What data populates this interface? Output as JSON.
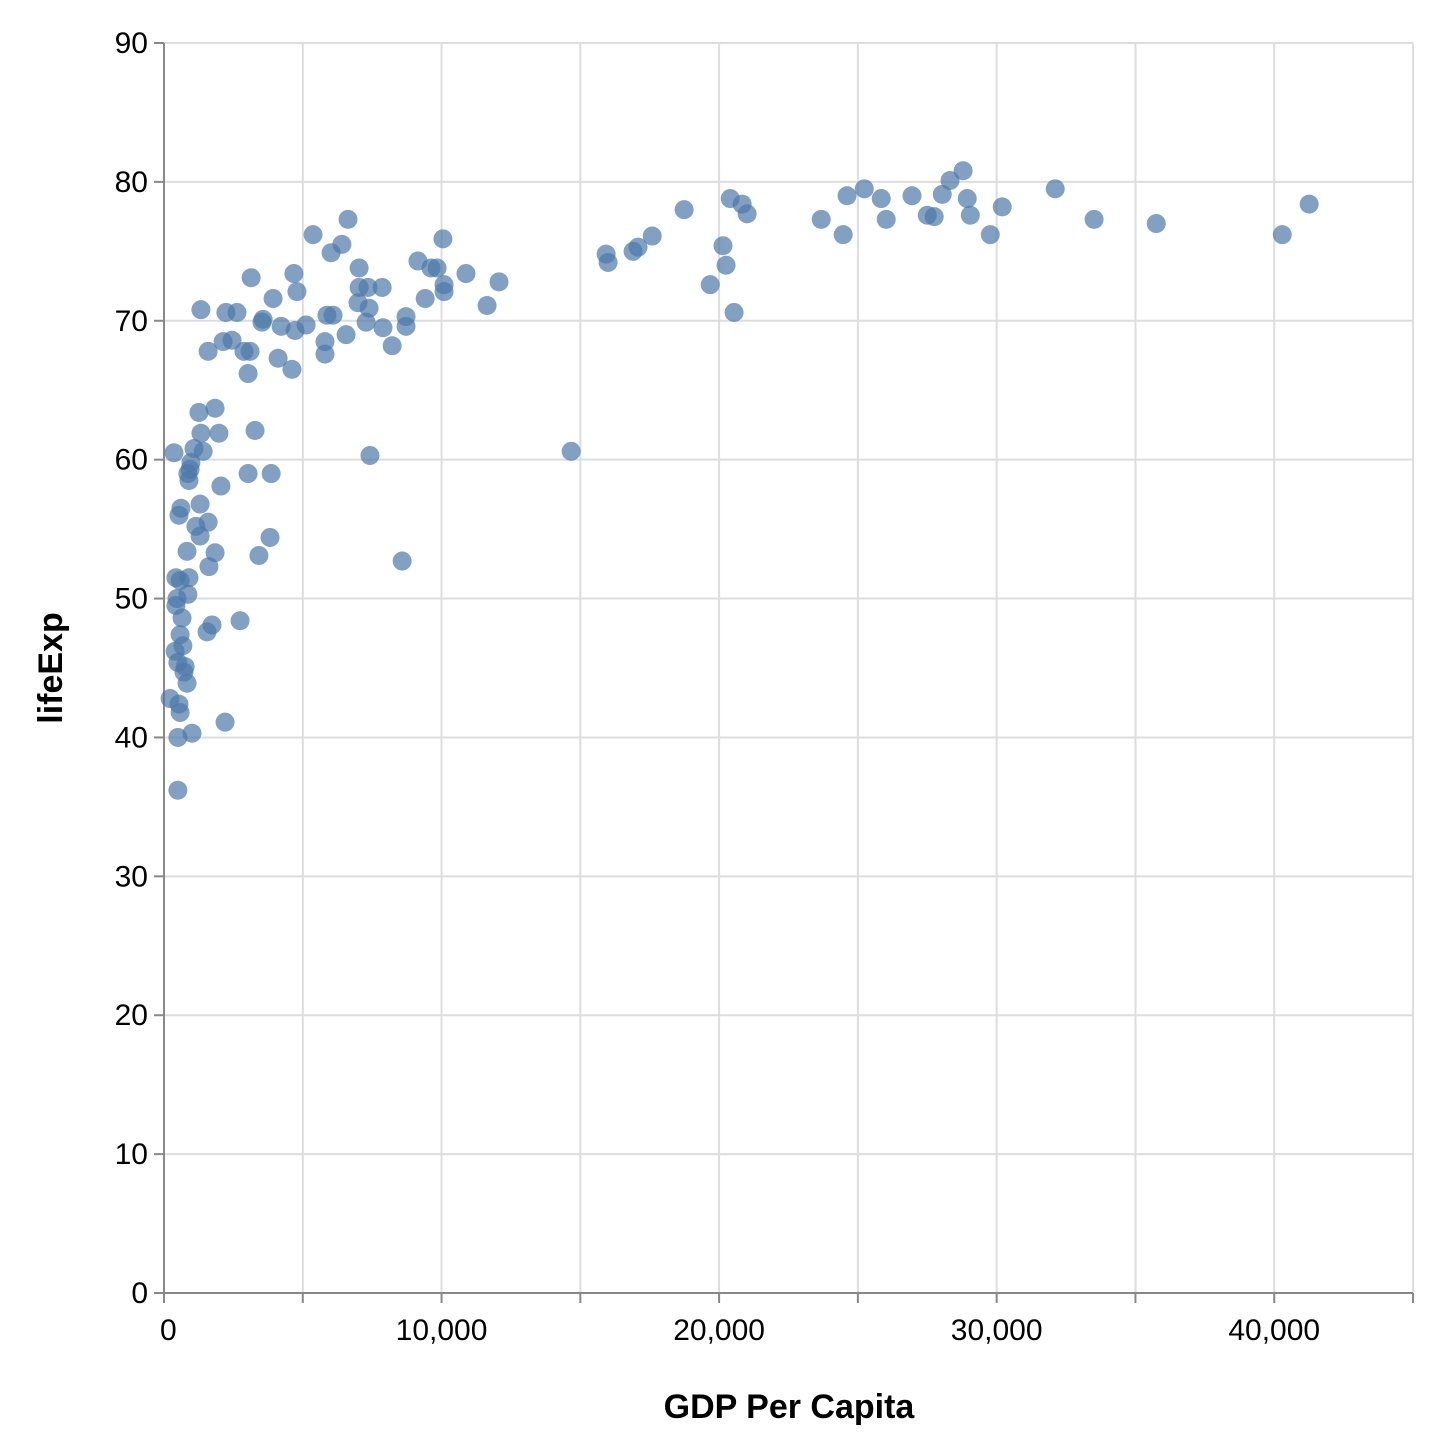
{
  "chart_data": {
    "type": "scatter",
    "xlabel": "GDP Per Capita",
    "ylabel": "lifeExp",
    "xlim": [
      0,
      45000
    ],
    "ylim": [
      0,
      90
    ],
    "x_ticks": [
      0,
      10000,
      20000,
      30000,
      40000
    ],
    "x_tick_labels": [
      "0",
      "10,000",
      "20,000",
      "30,000",
      "40,000"
    ],
    "x_minor_ticks": [
      5000,
      15000,
      25000,
      35000,
      45000
    ],
    "y_ticks": [
      0,
      10,
      20,
      30,
      40,
      50,
      60,
      70,
      80,
      90
    ],
    "y_tick_labels": [
      "0",
      "10",
      "20",
      "30",
      "40",
      "50",
      "60",
      "70",
      "80",
      "90"
    ],
    "grid": true,
    "point_color": "#4c78a8",
    "points": [
      [
        41260,
        78.4
      ],
      [
        40290,
        76.2
      ],
      [
        35750,
        77.0
      ],
      [
        33510,
        77.3
      ],
      [
        32110,
        79.5
      ],
      [
        30200,
        78.2
      ],
      [
        29770,
        76.2
      ],
      [
        29050,
        77.6
      ],
      [
        28940,
        78.8
      ],
      [
        28790,
        80.8
      ],
      [
        28320,
        80.1
      ],
      [
        28040,
        79.1
      ],
      [
        27750,
        77.5
      ],
      [
        27500,
        77.6
      ],
      [
        26950,
        79.0
      ],
      [
        26020,
        77.3
      ],
      [
        25840,
        78.8
      ],
      [
        25230,
        79.5
      ],
      [
        24610,
        79.0
      ],
      [
        24470,
        76.2
      ],
      [
        23680,
        77.3
      ],
      [
        21010,
        77.7
      ],
      [
        20830,
        78.4
      ],
      [
        20400,
        78.8
      ],
      [
        20540,
        70.6
      ],
      [
        20250,
        74.0
      ],
      [
        20140,
        75.4
      ],
      [
        19680,
        72.6
      ],
      [
        18740,
        78.0
      ],
      [
        17590,
        76.1
      ],
      [
        17080,
        75.3
      ],
      [
        16900,
        75.0
      ],
      [
        16000,
        74.2
      ],
      [
        15930,
        74.8
      ],
      [
        14670,
        60.6
      ],
      [
        12070,
        72.8
      ],
      [
        11640,
        71.1
      ],
      [
        10880,
        73.4
      ],
      [
        10050,
        75.9
      ],
      [
        10090,
        72.6
      ],
      [
        10090,
        72.1
      ],
      [
        9840,
        73.8
      ],
      [
        9620,
        73.8
      ],
      [
        9410,
        71.6
      ],
      [
        9150,
        74.3
      ],
      [
        8720,
        70.3
      ],
      [
        8720,
        69.6
      ],
      [
        8580,
        52.7
      ],
      [
        8220,
        68.2
      ],
      [
        7890,
        69.5
      ],
      [
        7860,
        72.4
      ],
      [
        7420,
        60.3
      ],
      [
        7390,
        70.9
      ],
      [
        7280,
        69.9
      ],
      [
        7350,
        72.4
      ],
      [
        7030,
        73.8
      ],
      [
        7030,
        72.4
      ],
      [
        6990,
        71.3
      ],
      [
        6630,
        77.3
      ],
      [
        6560,
        69.0
      ],
      [
        6410,
        75.5
      ],
      [
        6020,
        74.9
      ],
      [
        6090,
        70.4
      ],
      [
        5870,
        70.4
      ],
      [
        5800,
        68.5
      ],
      [
        5800,
        67.6
      ],
      [
        5370,
        76.2
      ],
      [
        5120,
        69.7
      ],
      [
        4790,
        72.1
      ],
      [
        4720,
        69.3
      ],
      [
        4680,
        73.4
      ],
      [
        4610,
        66.5
      ],
      [
        4220,
        69.6
      ],
      [
        4110,
        67.3
      ],
      [
        3930,
        71.6
      ],
      [
        3860,
        59.0
      ],
      [
        3820,
        54.4
      ],
      [
        3570,
        70.1
      ],
      [
        3530,
        69.9
      ],
      [
        3420,
        53.1
      ],
      [
        3280,
        62.1
      ],
      [
        3140,
        73.1
      ],
      [
        3100,
        67.8
      ],
      [
        3030,
        59.0
      ],
      [
        3030,
        66.2
      ],
      [
        2880,
        67.8
      ],
      [
        2740,
        48.4
      ],
      [
        2630,
        70.6
      ],
      [
        2450,
        68.6
      ],
      [
        2230,
        70.6
      ],
      [
        2200,
        41.1
      ],
      [
        2130,
        68.5
      ],
      [
        2050,
        58.1
      ],
      [
        1980,
        61.9
      ],
      [
        1840,
        63.7
      ],
      [
        1840,
        53.3
      ],
      [
        1730,
        48.1
      ],
      [
        1620,
        52.3
      ],
      [
        1590,
        55.5
      ],
      [
        1590,
        67.8
      ],
      [
        1550,
        47.6
      ],
      [
        1330,
        70.8
      ],
      [
        1410,
        60.6
      ],
      [
        1330,
        61.9
      ],
      [
        1260,
        63.4
      ],
      [
        1300,
        56.8
      ],
      [
        1300,
        54.5
      ],
      [
        1150,
        55.2
      ],
      [
        1080,
        60.8
      ],
      [
        1010,
        40.3
      ],
      [
        970,
        59.8
      ],
      [
        940,
        59.3
      ],
      [
        900,
        58.5
      ],
      [
        860,
        59.0
      ],
      [
        900,
        51.5
      ],
      [
        860,
        50.3
      ],
      [
        830,
        53.4
      ],
      [
        830,
        43.9
      ],
      [
        760,
        45.1
      ],
      [
        720,
        44.7
      ],
      [
        680,
        46.6
      ],
      [
        650,
        48.6
      ],
      [
        610,
        56.5
      ],
      [
        580,
        51.3
      ],
      [
        580,
        47.4
      ],
      [
        470,
        50.0
      ],
      [
        540,
        56.0
      ],
      [
        430,
        51.5
      ],
      [
        430,
        49.5
      ],
      [
        400,
        46.2
      ],
      [
        360,
        60.5
      ],
      [
        540,
        42.4
      ],
      [
        580,
        41.8
      ],
      [
        500,
        40.0
      ],
      [
        500,
        36.2
      ],
      [
        220,
        42.8
      ],
      [
        500,
        45.4
      ]
    ]
  }
}
